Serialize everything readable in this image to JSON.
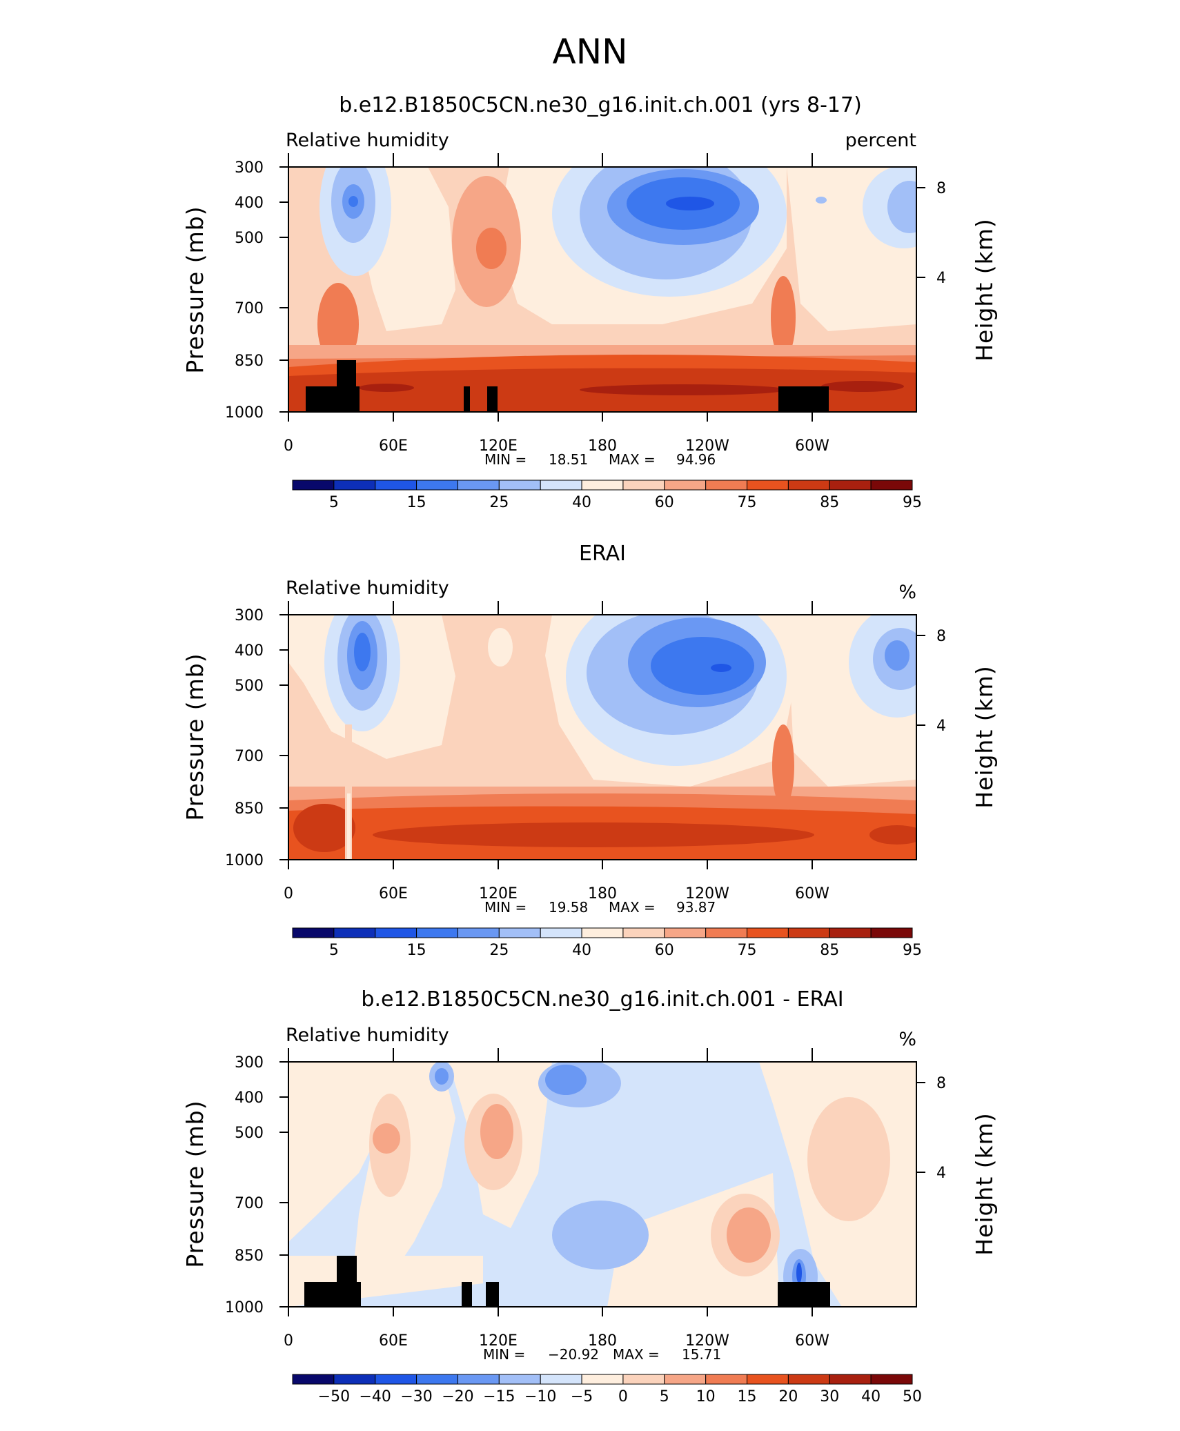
{
  "super_title": "ANN",
  "colors": {
    "ramp": [
      "#08086b",
      "#0d2fb8",
      "#1f56e6",
      "#3d78ef",
      "#6a98f3",
      "#a2bff7",
      "#d4e4fb",
      "#feeede",
      "#fbd3bc",
      "#f6a687",
      "#f07c53",
      "#e8531f",
      "#cc3a14",
      "#a8200f",
      "#7a0808"
    ]
  },
  "chart_data": [
    {
      "type": "heatmap",
      "title": "b.e12.B1850C5CN.ne30_g16.init.ch.001 (yrs 8-17)",
      "left_label": "Relative humidity",
      "right_label": "percent",
      "ylabel": "Pressure (mb)",
      "ylabel_right": "Height (km)",
      "xticks": [
        "0",
        "60E",
        "120E",
        "180",
        "120W",
        "60W"
      ],
      "yticks": [
        "300",
        "400",
        "500",
        "700",
        "850",
        "1000"
      ],
      "yticks_right": [
        "8",
        "4"
      ],
      "min_label": "MIN =",
      "min_value": "18.51",
      "max_label": "MAX =",
      "max_value": "94.96",
      "colorbar_labels": [
        "5",
        "15",
        "25",
        "40",
        "60",
        "75",
        "85",
        "95"
      ],
      "terrain": true
    },
    {
      "type": "heatmap",
      "title": "ERAI",
      "left_label": "Relative humidity",
      "right_label": "%",
      "ylabel": "Pressure (mb)",
      "ylabel_right": "Height (km)",
      "xticks": [
        "0",
        "60E",
        "120E",
        "180",
        "120W",
        "60W"
      ],
      "yticks": [
        "300",
        "400",
        "500",
        "700",
        "850",
        "1000"
      ],
      "yticks_right": [
        "8",
        "4"
      ],
      "min_label": "MIN =",
      "min_value": "19.58",
      "max_label": "MAX =",
      "max_value": "93.87",
      "colorbar_labels": [
        "5",
        "15",
        "25",
        "40",
        "60",
        "75",
        "85",
        "95"
      ],
      "terrain": false
    },
    {
      "type": "heatmap",
      "title": "b.e12.B1850C5CN.ne30_g16.init.ch.001 - ERAI",
      "left_label": "Relative humidity",
      "right_label": "%",
      "ylabel": "Pressure (mb)",
      "ylabel_right": "Height (km)",
      "xticks": [
        "0",
        "60E",
        "120E",
        "180",
        "120W",
        "60W"
      ],
      "yticks": [
        "300",
        "400",
        "500",
        "700",
        "850",
        "1000"
      ],
      "yticks_right": [
        "8",
        "4"
      ],
      "min_label": "MIN =",
      "min_value": "−20.92",
      "max_label": "MAX =",
      "max_value": "15.71",
      "colorbar_labels": [
        "−50",
        "−40",
        "−30",
        "−20",
        "−15",
        "−10",
        "−5",
        "0",
        "5",
        "10",
        "15",
        "20",
        "30",
        "40",
        "50"
      ],
      "terrain": true
    }
  ]
}
